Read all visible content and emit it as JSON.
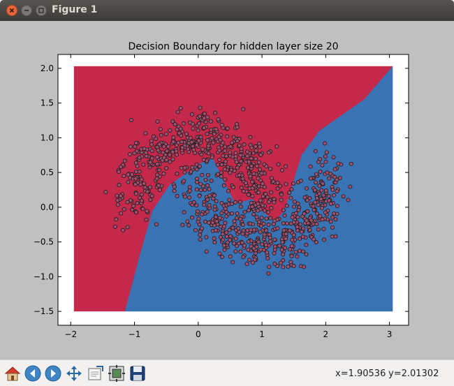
{
  "window": {
    "title": "Figure 1"
  },
  "status": {
    "x_readout": "x=1.90536",
    "y_readout": "y=2.01302"
  },
  "toolbar_icons": [
    "home-icon",
    "back-icon",
    "forward-icon",
    "pan-icon",
    "zoom-icon",
    "subplots-icon",
    "save-icon"
  ],
  "colors": {
    "red_region": "#c4284a",
    "blue_region": "#3a73b4",
    "point_fill": "#a0506e",
    "titlebar": "#3c3b37"
  },
  "chart_data": {
    "type": "scatter",
    "title": "Decision Boundary for hidden layer size 20",
    "xlabel": "",
    "ylabel": "",
    "xlim": [
      -2.2,
      3.3
    ],
    "ylim": [
      -1.7,
      2.2
    ],
    "grid": false,
    "xticks": [
      "−2",
      "−1",
      "0",
      "1",
      "2",
      "3"
    ],
    "yticks": [
      "−1.5",
      "−1.0",
      "−0.5",
      "0.0",
      "0.5",
      "1.0",
      "1.5",
      "2.0"
    ],
    "regions": [
      {
        "class": 0,
        "color": "#c4284a",
        "polygon": [
          [
            -1.95,
            2.03
          ],
          [
            3.05,
            2.03
          ],
          [
            3.05,
            -1.5
          ],
          [
            -1.95,
            -1.5
          ]
        ]
      },
      {
        "class": 1,
        "color": "#3a73b4",
        "polygon": [
          [
            -1.15,
            -1.5
          ],
          [
            -0.92,
            -0.7
          ],
          [
            -0.72,
            -0.05
          ],
          [
            -0.45,
            0.32
          ],
          [
            0.0,
            0.62
          ],
          [
            0.22,
            0.72
          ],
          [
            0.42,
            0.35
          ],
          [
            0.58,
            0.05
          ],
          [
            0.85,
            0.12
          ],
          [
            1.0,
            -0.05
          ],
          [
            1.2,
            -0.2
          ],
          [
            1.35,
            -0.05
          ],
          [
            1.62,
            0.75
          ],
          [
            1.9,
            1.1
          ],
          [
            2.6,
            1.55
          ],
          [
            3.05,
            2.03
          ],
          [
            3.05,
            -1.5
          ]
        ]
      }
    ],
    "series": [
      {
        "class": 0,
        "center": [
          0.0,
          0.0
        ],
        "radius": 1.0,
        "theta_start": 0.0,
        "theta_end": 3.14159,
        "noise": 0.2,
        "n": 500,
        "seed": 7
      },
      {
        "class": 1,
        "center": [
          1.0,
          0.5
        ],
        "radius": 1.0,
        "theta_start": 3.14159,
        "theta_end": 6.28318,
        "noise": 0.2,
        "n": 500,
        "seed": 13
      }
    ]
  }
}
